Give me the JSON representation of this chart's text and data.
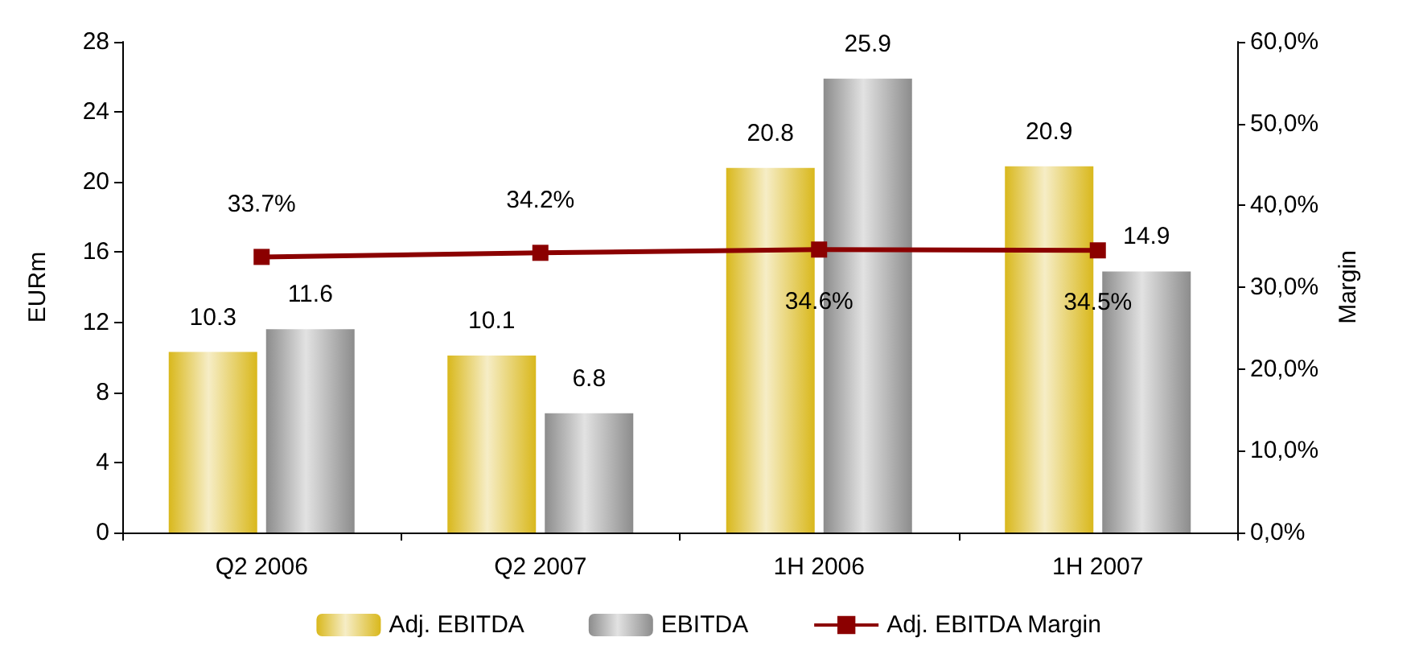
{
  "chart_data": {
    "type": "bar",
    "categories": [
      "Q2 2006",
      "Q2 2007",
      "1H 2006",
      "1H 2007"
    ],
    "ylabel": "EURm",
    "y2label": "Margin",
    "ylim": [
      0,
      28
    ],
    "yticks": [
      0,
      4,
      8,
      12,
      16,
      20,
      24,
      28
    ],
    "y2lim": [
      0,
      60
    ],
    "y2ticks": [
      {
        "value": 0,
        "label": "0,0%"
      },
      {
        "value": 10,
        "label": "10,0%"
      },
      {
        "value": 20,
        "label": "20,0%"
      },
      {
        "value": 30,
        "label": "30,0%"
      },
      {
        "value": 40,
        "label": "40,0%"
      },
      {
        "value": 50,
        "label": "50,0%"
      },
      {
        "value": 60,
        "label": "60,0%"
      }
    ],
    "series": [
      {
        "name": "Adj. EBITDA",
        "color": "#d9b81c",
        "values": [
          10.3,
          10.1,
          20.8,
          20.9
        ],
        "value_labels": [
          "10.3",
          "10.1",
          "20.8",
          "20.9"
        ]
      },
      {
        "name": "EBITDA",
        "color": "#8c8c8c",
        "values": [
          11.6,
          6.8,
          25.9,
          14.9
        ],
        "value_labels": [
          "11.6",
          "6.8",
          "25.9",
          "14.9"
        ]
      },
      {
        "name": "Adj. EBITDA Margin",
        "type": "line",
        "axis": "y2",
        "color": "#8b0000",
        "marker": "square",
        "values": [
          33.7,
          34.2,
          34.6,
          34.5
        ],
        "value_labels": [
          "33.7%",
          "34.2%",
          "34.6%",
          "34.5%"
        ]
      }
    ],
    "legend": "bottom",
    "grid": false
  }
}
